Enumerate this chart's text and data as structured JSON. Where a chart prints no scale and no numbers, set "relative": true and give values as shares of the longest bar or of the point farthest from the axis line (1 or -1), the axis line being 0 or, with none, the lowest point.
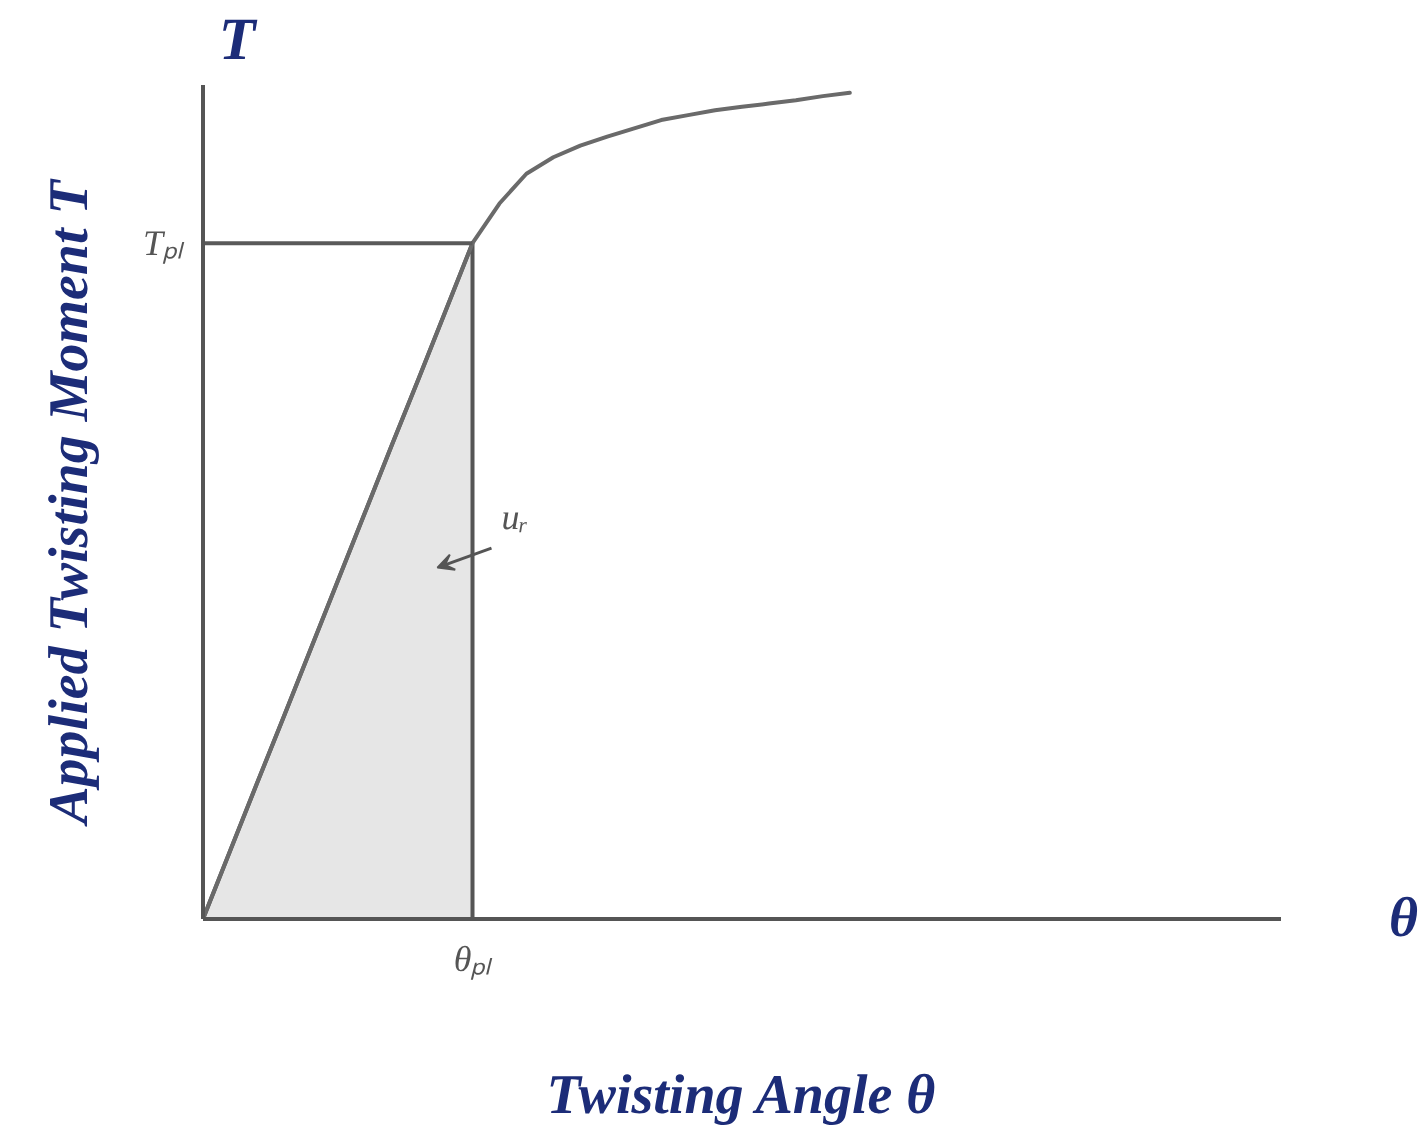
{
  "chart_data": {
    "type": "line",
    "relative": true,
    "xlabel": "Twisting Angle θ",
    "ylabel": "Applied Twisting Moment T",
    "categories": [
      null,
      null,
      null,
      null,
      null,
      null,
      null,
      null,
      null,
      null,
      null,
      null,
      null,
      null,
      null,
      null,
      null,
      null,
      null,
      null,
      null,
      null,
      null,
      null,
      null,
      null,
      null,
      null,
      null,
      null,
      null,
      null,
      null,
      null,
      null,
      null,
      null,
      null,
      null,
      null,
      null
    ],
    "series": [
      {
        "type": "area",
        "color": "#e6e6e6",
        "values": [
          0,
          0.082,
          0.164,
          0.245,
          0.327,
          0.409,
          0.491,
          0.573,
          0.654,
          0.736,
          0.818,
          null,
          null,
          null,
          null,
          null,
          null,
          null,
          null,
          null,
          null,
          null,
          null,
          null,
          null,
          null,
          null,
          null,
          null,
          null,
          null,
          null,
          null,
          null,
          null,
          null,
          null,
          null,
          null,
          null,
          null
        ]
      },
      {
        "color": "#6a6a6a",
        "values": [
          0,
          0.082,
          0.164,
          0.245,
          0.327,
          0.409,
          0.491,
          0.573,
          0.654,
          0.736,
          0.818,
          0.866,
          0.902,
          0.922,
          0.936,
          0.947,
          0.957,
          0.967,
          0.973,
          0.979,
          0.983,
          0.987,
          0.991,
          0.996,
          1.0,
          null,
          null,
          null,
          null,
          null,
          null,
          null,
          null,
          null,
          null,
          null,
          null,
          null,
          null,
          null,
          null
        ]
      }
    ],
    "ref_lines": [
      {
        "axis": "y",
        "value": 0.818,
        "label": "Tₚₗ",
        "color": "#5a5a5a"
      }
    ],
    "annotations": [
      "T",
      "θ",
      "uᵣ",
      "θₚₗ"
    ]
  }
}
